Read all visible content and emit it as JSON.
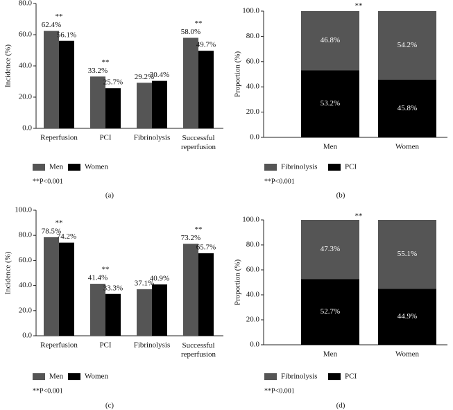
{
  "chart_data": [
    {
      "type": "grouped-bar",
      "panel": "(a)",
      "y_label": "Incidence (%)",
      "categories": [
        "Reperfusion",
        "PCI",
        "Fibrinolysis",
        "Successful reperfusion"
      ],
      "series": [
        {
          "name": "Men",
          "color": "#555555",
          "values": [
            62.4,
            33.2,
            29.2,
            58.0
          ],
          "value_labels": [
            "62.4%",
            "33.2%",
            "29.2%",
            "58.0%"
          ]
        },
        {
          "name": "Women",
          "color": "#000000",
          "values": [
            56.1,
            25.7,
            30.4,
            49.7
          ],
          "value_labels": [
            "56.1%",
            "25.7%",
            "30.4%",
            "49.7%"
          ]
        }
      ],
      "ylim": [
        0,
        80
      ],
      "yticks": [
        {
          "value": 0,
          "label": "0.0"
        },
        {
          "value": 20,
          "label": "20.0"
        },
        {
          "value": 40,
          "label": "40.0"
        },
        {
          "value": 60,
          "label": "60.0"
        },
        {
          "value": 80,
          "label": "80.0"
        }
      ],
      "annotations": [
        "**",
        "**",
        "**"
      ],
      "note": "**P<0.001"
    },
    {
      "type": "stacked-bar",
      "panel": "(b)",
      "y_label": "Proportion (%)",
      "categories": [
        "Men",
        "Women"
      ],
      "series": [
        {
          "name": "Fibrinolysis",
          "color": "#555555",
          "values": [
            46.8,
            54.2
          ],
          "value_labels": [
            "46.8%",
            "54.2%"
          ]
        },
        {
          "name": "PCI",
          "color": "#000000",
          "values": [
            53.2,
            45.8
          ],
          "value_labels": [
            "53.2%",
            "45.8%"
          ]
        }
      ],
      "ylim": [
        0,
        100
      ],
      "yticks": [
        {
          "value": 0,
          "label": "0.0"
        },
        {
          "value": 20,
          "label": "20.0"
        },
        {
          "value": 40,
          "label": "40.0"
        },
        {
          "value": 60,
          "label": "60.0"
        },
        {
          "value": 80,
          "label": "80.0"
        },
        {
          "value": 100,
          "label": "100.0"
        }
      ],
      "annotations": [
        "**"
      ],
      "note": "**P<0.001"
    },
    {
      "type": "grouped-bar",
      "panel": "(c)",
      "y_label": "Incidence (%)",
      "categories": [
        "Reperfusion",
        "PCI",
        "Fibrinolysis",
        "Successful reperfusion"
      ],
      "series": [
        {
          "name": "Men",
          "color": "#555555",
          "values": [
            78.5,
            41.4,
            37.1,
            73.2
          ],
          "value_labels": [
            "78.5%",
            "41.4%",
            "37.1%",
            "73.2%"
          ]
        },
        {
          "name": "Women",
          "color": "#000000",
          "values": [
            74.2,
            33.3,
            40.9,
            65.7
          ],
          "value_labels": [
            "74.2%",
            "33.3%",
            "40.9%",
            "65.7%"
          ]
        }
      ],
      "ylim": [
        0,
        100
      ],
      "yticks": [
        {
          "value": 0,
          "label": "0.0"
        },
        {
          "value": 20,
          "label": "20.0"
        },
        {
          "value": 40,
          "label": "40.0"
        },
        {
          "value": 60,
          "label": "60.0"
        },
        {
          "value": 80,
          "label": "80.0"
        },
        {
          "value": 100,
          "label": "100.0"
        }
      ],
      "annotations": [
        "**",
        "**",
        "**"
      ],
      "note": "**P<0.001"
    },
    {
      "type": "stacked-bar",
      "panel": "(d)",
      "y_label": "Proportion (%)",
      "categories": [
        "Men",
        "Women"
      ],
      "series": [
        {
          "name": "Fibrinolysis",
          "color": "#555555",
          "values": [
            47.3,
            55.1
          ],
          "value_labels": [
            "47.3%",
            "55.1%"
          ]
        },
        {
          "name": "PCI",
          "color": "#000000",
          "values": [
            52.7,
            44.9
          ],
          "value_labels": [
            "52.7%",
            "44.9%"
          ]
        }
      ],
      "ylim": [
        0,
        100
      ],
      "yticks": [
        {
          "value": 0,
          "label": "0.0"
        },
        {
          "value": 20,
          "label": "20.0"
        },
        {
          "value": 40,
          "label": "40.0"
        },
        {
          "value": 60,
          "label": "60.0"
        },
        {
          "value": 80,
          "label": "80.0"
        },
        {
          "value": 100,
          "label": "100.0"
        }
      ],
      "annotations": [
        "**"
      ],
      "note": "**P<0.001"
    }
  ]
}
